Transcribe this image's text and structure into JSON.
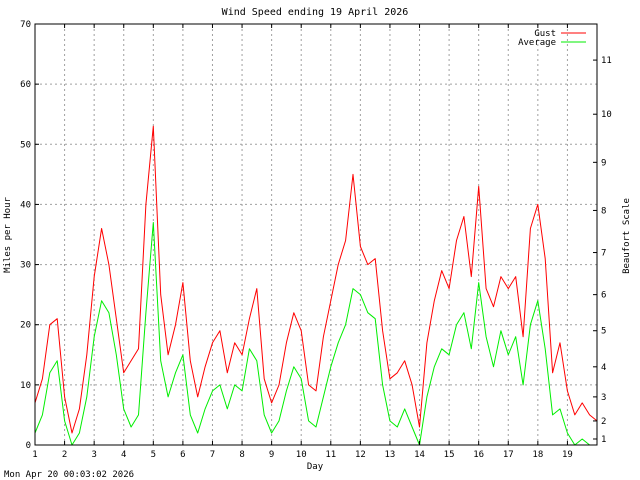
{
  "chart_data": {
    "type": "line",
    "title": "Wind Speed ending 19 April 2026",
    "xlabel": "Day",
    "ylabel": "Miles per Hour",
    "y2label": "Beaufort Scale",
    "xlim": [
      1,
      20
    ],
    "ylim": [
      0,
      70
    ],
    "x_ticks": [
      "1",
      "2",
      "3",
      "4",
      "5",
      "6",
      "7",
      "8",
      "9",
      "10",
      "11",
      "12",
      "13",
      "14",
      "15",
      "16",
      "17",
      "18",
      "19"
    ],
    "y_ticks": [
      "0",
      "10",
      "20",
      "30",
      "40",
      "50",
      "60",
      "70"
    ],
    "beaufort_ticks": [
      {
        "label": "1",
        "mph": 1
      },
      {
        "label": "2",
        "mph": 4
      },
      {
        "label": "3",
        "mph": 8
      },
      {
        "label": "4",
        "mph": 13
      },
      {
        "label": "5",
        "mph": 19
      },
      {
        "label": "6",
        "mph": 25
      },
      {
        "label": "7",
        "mph": 32
      },
      {
        "label": "8",
        "mph": 39
      },
      {
        "label": "9",
        "mph": 47
      },
      {
        "label": "10",
        "mph": 55
      },
      {
        "label": "11",
        "mph": 64
      }
    ],
    "grid": true,
    "legend_position": "top-right",
    "footer": "Mon Apr 20 00:03:02 2026",
    "series": [
      {
        "name": "Gust",
        "color": "#ff0000",
        "x": [
          1.0,
          1.25,
          1.5,
          1.75,
          2.0,
          2.25,
          2.5,
          2.75,
          3.0,
          3.25,
          3.5,
          3.75,
          4.0,
          4.25,
          4.5,
          4.75,
          5.0,
          5.25,
          5.5,
          5.75,
          6.0,
          6.25,
          6.5,
          6.75,
          7.0,
          7.25,
          7.5,
          7.75,
          8.0,
          8.25,
          8.5,
          8.75,
          9.0,
          9.25,
          9.5,
          9.75,
          10.0,
          10.25,
          10.5,
          10.75,
          11.0,
          11.25,
          11.5,
          11.75,
          12.0,
          12.25,
          12.5,
          12.75,
          13.0,
          13.25,
          13.5,
          13.75,
          14.0,
          14.25,
          14.5,
          14.75,
          15.0,
          15.25,
          15.5,
          15.75,
          16.0,
          16.25,
          16.5,
          16.75,
          17.0,
          17.25,
          17.5,
          17.75,
          18.0,
          18.25,
          18.5,
          18.75,
          19.0,
          19.25,
          19.5,
          19.75,
          20.0
        ],
        "y": [
          7,
          11,
          20,
          21,
          8,
          2,
          6,
          15,
          28,
          36,
          30,
          21,
          12,
          14,
          16,
          40,
          53,
          25,
          15,
          20,
          27,
          14,
          8,
          13,
          17,
          19,
          12,
          17,
          15,
          21,
          26,
          11,
          7,
          10,
          17,
          22,
          19,
          10,
          9,
          18,
          24,
          30,
          34,
          45,
          33,
          30,
          31,
          19,
          11,
          12,
          14,
          10,
          3,
          17,
          24,
          29,
          26,
          34,
          38,
          28,
          43,
          26,
          23,
          28,
          26,
          28,
          18,
          36,
          40,
          31,
          12,
          17,
          9,
          5,
          7,
          5,
          4
        ]
      },
      {
        "name": "Average",
        "color": "#00ee00",
        "x": [
          1.0,
          1.25,
          1.5,
          1.75,
          2.0,
          2.25,
          2.5,
          2.75,
          3.0,
          3.25,
          3.5,
          3.75,
          4.0,
          4.25,
          4.5,
          4.75,
          5.0,
          5.25,
          5.5,
          5.75,
          6.0,
          6.25,
          6.5,
          6.75,
          7.0,
          7.25,
          7.5,
          7.75,
          8.0,
          8.25,
          8.5,
          8.75,
          9.0,
          9.25,
          9.5,
          9.75,
          10.0,
          10.25,
          10.5,
          10.75,
          11.0,
          11.25,
          11.5,
          11.75,
          12.0,
          12.25,
          12.5,
          12.75,
          13.0,
          13.25,
          13.5,
          13.75,
          14.0,
          14.25,
          14.5,
          14.75,
          15.0,
          15.25,
          15.5,
          15.75,
          16.0,
          16.25,
          16.5,
          16.75,
          17.0,
          17.25,
          17.5,
          17.75,
          18.0,
          18.25,
          18.5,
          18.75,
          19.0,
          19.25,
          19.5,
          19.75,
          20.0
        ],
        "y": [
          2,
          5,
          12,
          14,
          4,
          0,
          2,
          8,
          18,
          24,
          22,
          15,
          6,
          3,
          5,
          22,
          37,
          14,
          8,
          12,
          15,
          5,
          2,
          6,
          9,
          10,
          6,
          10,
          9,
          16,
          14,
          5,
          2,
          4,
          9,
          13,
          11,
          4,
          3,
          8,
          13,
          17,
          20,
          26,
          25,
          22,
          21,
          10,
          4,
          3,
          6,
          3,
          0,
          8,
          13,
          16,
          15,
          20,
          22,
          16,
          27,
          18,
          13,
          19,
          15,
          18,
          10,
          20,
          24,
          16,
          5,
          6,
          2,
          0,
          1,
          0,
          0
        ]
      }
    ]
  }
}
